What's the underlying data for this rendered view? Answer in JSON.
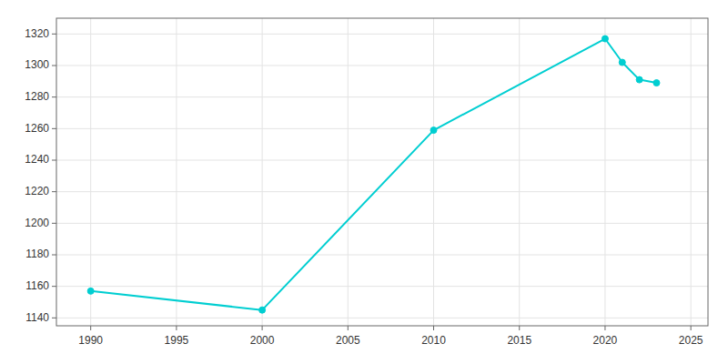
{
  "chart_data": {
    "type": "line",
    "x": [
      1990,
      2000,
      2010,
      2020,
      2021,
      2022,
      2023
    ],
    "values": [
      1157,
      1145,
      1259,
      1317,
      1302,
      1291,
      1289
    ],
    "color": "#00CED1",
    "marker": "circle",
    "xlim": [
      1988,
      2026
    ],
    "ylim": [
      1135,
      1330
    ],
    "xticks": [
      1990,
      1995,
      2000,
      2005,
      2010,
      2015,
      2020,
      2025
    ],
    "yticks": [
      1140,
      1160,
      1180,
      1200,
      1220,
      1240,
      1260,
      1280,
      1300,
      1320
    ],
    "grid": true
  }
}
